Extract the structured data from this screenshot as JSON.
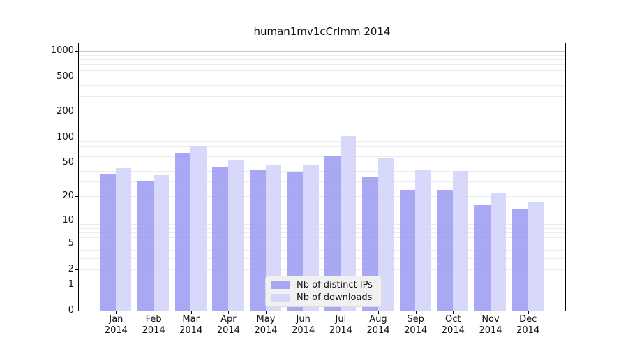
{
  "title": "human1mv1cCrlmm 2014",
  "chart_data": {
    "type": "bar",
    "title": "human1mv1cCrlmm 2014",
    "categories": [
      {
        "month": "Jan",
        "year": "2014"
      },
      {
        "month": "Feb",
        "year": "2014"
      },
      {
        "month": "Mar",
        "year": "2014"
      },
      {
        "month": "Apr",
        "year": "2014"
      },
      {
        "month": "May",
        "year": "2014"
      },
      {
        "month": "Jun",
        "year": "2014"
      },
      {
        "month": "Jul",
        "year": "2014"
      },
      {
        "month": "Aug",
        "year": "2014"
      },
      {
        "month": "Sep",
        "year": "2014"
      },
      {
        "month": "Oct",
        "year": "2014"
      },
      {
        "month": "Nov",
        "year": "2014"
      },
      {
        "month": "Dec",
        "year": "2014"
      }
    ],
    "series": [
      {
        "name": "Nb of distinct IPs",
        "values": [
          37,
          31,
          66,
          45,
          41,
          39,
          60,
          34,
          24,
          24,
          16,
          14
        ],
        "color": "rgba(153,153,243,0.85)"
      },
      {
        "name": "Nb of downloads",
        "values": [
          44,
          36,
          80,
          54,
          47,
          47,
          104,
          57,
          41,
          40,
          22,
          17
        ],
        "color": "rgba(211,211,250,0.88)"
      }
    ],
    "yscale": "log1p",
    "yticks": [
      0,
      1,
      2,
      5,
      10,
      20,
      50,
      100,
      200,
      500,
      1000
    ],
    "ylim": [
      0,
      1230
    ],
    "xlabel": "",
    "ylabel": "",
    "grid": true,
    "legend_position": "bottom-center",
    "colors": {
      "grid_major": "#c4c4c4",
      "grid_minor": "#ececec",
      "frame": "#000000",
      "legend_bg": "#f1f1f1",
      "legend_border": "#dcdcdc"
    }
  }
}
